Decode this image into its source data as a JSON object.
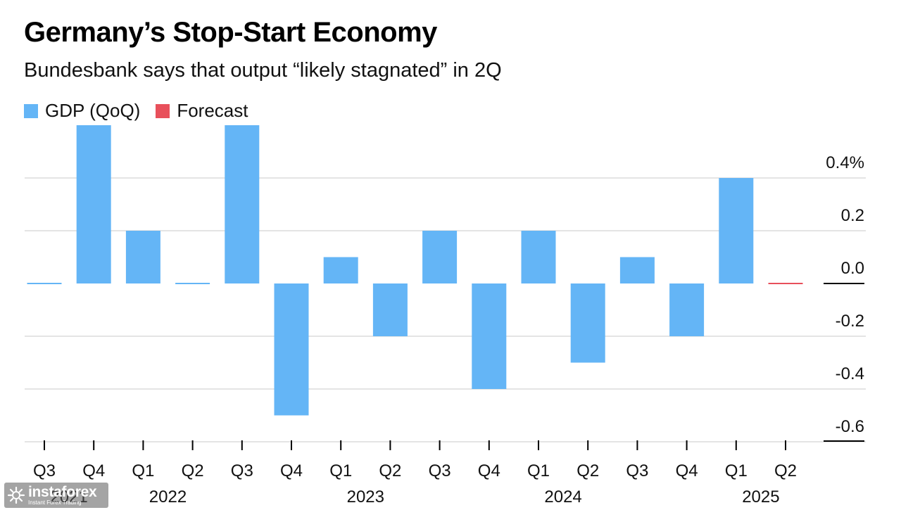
{
  "chart_data": {
    "type": "bar",
    "title": "Germany’s Stop-Start Economy",
    "subtitle": "Bundesbank says that output “likely stagnated” in 2Q",
    "legend": [
      {
        "name": "GDP (QoQ)",
        "color": "#64b5f6"
      },
      {
        "name": "Forecast",
        "color": "#e8505b"
      }
    ],
    "categories": [
      "Q3",
      "Q4",
      "Q1",
      "Q2",
      "Q3",
      "Q4",
      "Q1",
      "Q2",
      "Q3",
      "Q4",
      "Q1",
      "Q2",
      "Q3",
      "Q4",
      "Q1",
      "Q2"
    ],
    "year_labels": [
      {
        "label": "2021",
        "index": 0
      },
      {
        "label": "2022",
        "index": 2
      },
      {
        "label": "2023",
        "index": 6
      },
      {
        "label": "2024",
        "index": 10
      },
      {
        "label": "2025",
        "index": 14
      }
    ],
    "series": [
      {
        "name": "GDP (QoQ)",
        "color": "#64b5f6",
        "values": [
          0.0,
          0.6,
          0.2,
          0.0,
          0.6,
          -0.5,
          0.1,
          -0.2,
          0.2,
          -0.4,
          0.2,
          -0.3,
          0.1,
          -0.2,
          0.4,
          null
        ]
      },
      {
        "name": "Forecast",
        "color": "#e8505b",
        "values": [
          null,
          null,
          null,
          null,
          null,
          null,
          null,
          null,
          null,
          null,
          null,
          null,
          null,
          null,
          null,
          0.0
        ]
      }
    ],
    "y_ticks": [
      {
        "value": 0.4,
        "label": "0.4%"
      },
      {
        "value": 0.2,
        "label": "0.2"
      },
      {
        "value": 0.0,
        "label": "0.0"
      },
      {
        "value": -0.2,
        "label": "-0.2"
      },
      {
        "value": -0.4,
        "label": "-0.4"
      },
      {
        "value": -0.6,
        "label": "-0.6"
      }
    ],
    "ylim": [
      -0.6,
      0.6
    ],
    "grid": true,
    "xlabel": "",
    "ylabel": ""
  },
  "watermark": {
    "brand": "instaforex",
    "tagline": "Instant Forex Trading"
  }
}
